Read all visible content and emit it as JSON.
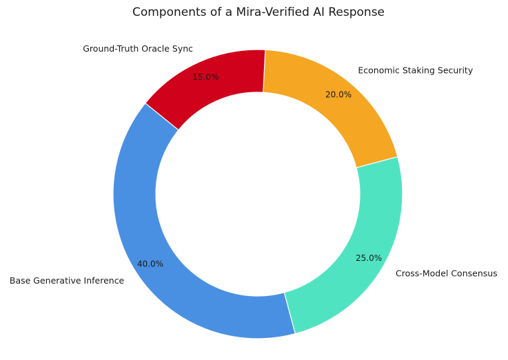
{
  "chart_data": {
    "type": "pie",
    "donut": true,
    "title": "Components of a Mira-Verified AI Response",
    "categories": [
      "Economic Staking Security",
      "Cross-Model Consensus",
      "Base Generative Inference",
      "Ground-Truth Oracle Sync"
    ],
    "values": [
      20.0,
      25.0,
      40.0,
      15.0
    ],
    "percent_labels": [
      "20.0%",
      "25.0%",
      "40.0%",
      "15.0%"
    ],
    "colors": [
      "#F5A623",
      "#50E3C2",
      "#4A90E2",
      "#D0021B"
    ],
    "start_angle_deg": 87,
    "direction": "clockwise",
    "legend": "none"
  }
}
